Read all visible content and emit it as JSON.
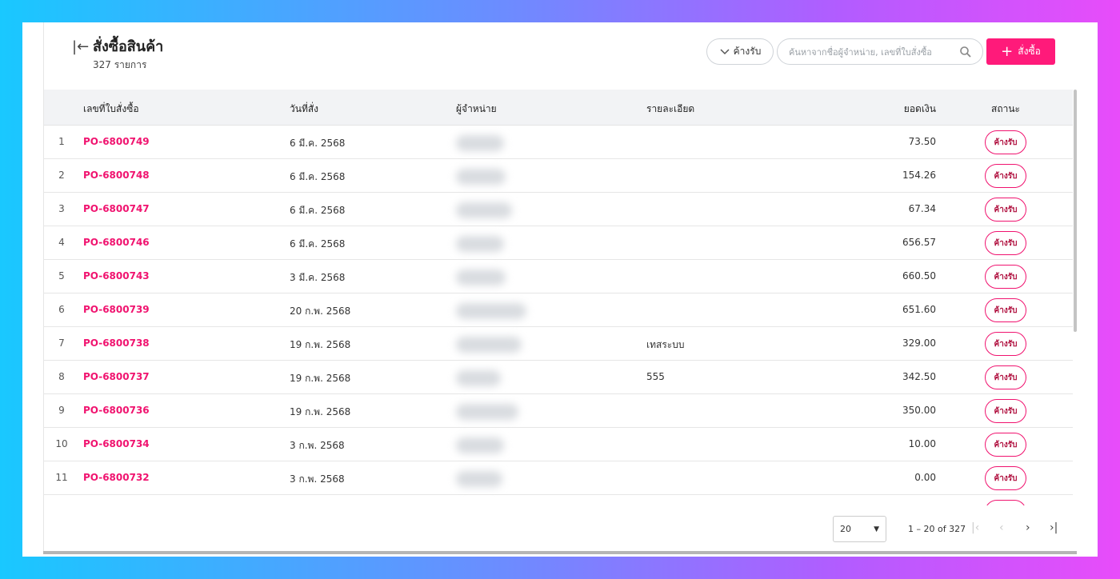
{
  "header": {
    "title": "สั่งซื้อสินค้า",
    "subtitle": "327 รายการ",
    "filter": "ค้างรับ",
    "search_placeholder": "ค้นหาจากชื่อผู้จำหน่าย, เลขที่ใบสั่งซื้อ",
    "add_button": "สั่งซื้อ"
  },
  "table": {
    "columns": [
      "เลขที่ใบสั่งซื้อ",
      "วันที่สั่ง",
      "ผู้จำหน่าย",
      "รายละเอียด",
      "ยอดเงิน",
      "สถานะ"
    ],
    "rows": [
      {
        "no": "1",
        "id": "PO-6800749",
        "date": "6 มี.ค. 2568",
        "amount": "73.50",
        "status": "ค้างรับ"
      },
      {
        "no": "2",
        "id": "PO-6800748",
        "date": "6 มี.ค. 2568",
        "amount": "154.26",
        "status": "ค้างรับ"
      },
      {
        "no": "3",
        "id": "PO-6800747",
        "date": "6 มี.ค. 2568",
        "amount": "67.34",
        "status": "ค้างรับ"
      },
      {
        "no": "4",
        "id": "PO-6800746",
        "date": "6 มี.ค. 2568",
        "amount": "656.57",
        "status": "ค้างรับ"
      },
      {
        "no": "5",
        "id": "PO-6800743",
        "date": "3 มี.ค. 2568",
        "amount": "660.50",
        "status": "ค้างรับ"
      },
      {
        "no": "6",
        "id": "PO-6800739",
        "date": "20 ก.พ. 2568",
        "amount": "651.60",
        "status": "ค้างรับ"
      },
      {
        "no": "7",
        "id": "PO-6800738",
        "date": "19 ก.พ. 2568",
        "detail": "เทสระบบ",
        "amount": "329.00",
        "status": "ค้างรับ"
      },
      {
        "no": "8",
        "id": "PO-6800737",
        "date": "19 ก.พ. 2568",
        "detail": "555",
        "amount": "342.50",
        "status": "ค้างรับ"
      },
      {
        "no": "9",
        "id": "PO-6800736",
        "date": "19 ก.พ. 2568",
        "amount": "350.00",
        "status": "ค้างรับ"
      },
      {
        "no": "10",
        "id": "PO-6800734",
        "date": "3 ก.พ. 2568",
        "amount": "10.00",
        "status": "ค้างรับ"
      },
      {
        "no": "11",
        "id": "PO-6800732",
        "date": "3 ก.พ. 2568",
        "amount": "0.00",
        "status": "ค้างรับ"
      }
    ]
  },
  "pagination": {
    "page_size": "20",
    "range": "1 – 20 of 327"
  }
}
